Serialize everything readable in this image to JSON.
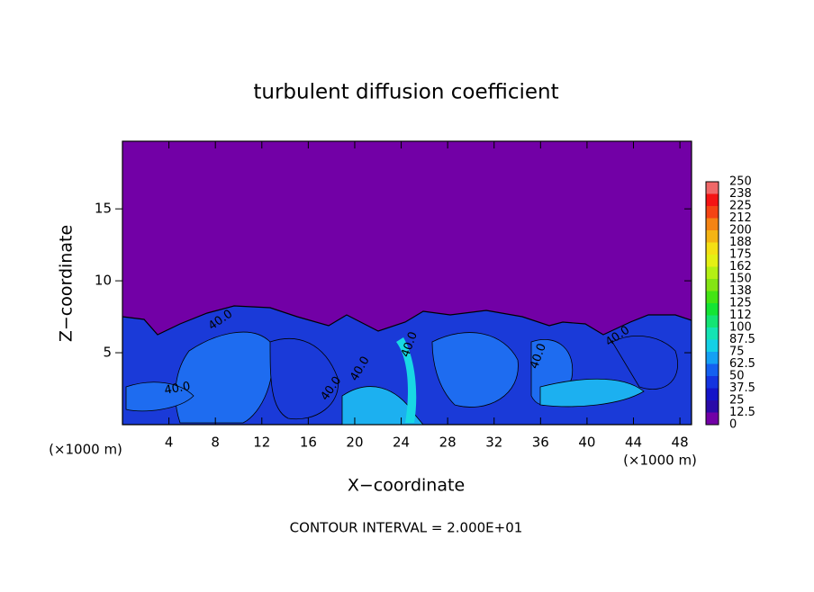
{
  "chart_data": {
    "type": "heatmap",
    "title": "turbulent diffusion coefficient",
    "xlabel": "X−coordinate",
    "ylabel": "Z−coordinate",
    "x_unit": "(×1000 m)",
    "y_unit": "(×1000 m)",
    "annotation": "CONTOUR INTERVAL = 2.000E+01",
    "xlim": [
      0,
      49
    ],
    "ylim": [
      0,
      19.7
    ],
    "xticks": [
      4,
      8,
      12,
      16,
      20,
      24,
      28,
      32,
      36,
      40,
      44,
      48
    ],
    "yticks": [
      5,
      10,
      15
    ],
    "colorbar": {
      "levels": [
        0,
        12.5,
        25,
        37.5,
        50,
        62.5,
        75,
        87.5,
        100,
        112,
        125,
        138,
        150,
        162,
        175,
        188,
        200,
        212,
        225,
        238,
        250
      ],
      "colors": [
        "#7200a6",
        "#2a0aa8",
        "#1414c8",
        "#1434e0",
        "#1460f0",
        "#14a0f4",
        "#14d0e6",
        "#14e4b4",
        "#14e474",
        "#14e434",
        "#44e414",
        "#84e414",
        "#b4f014",
        "#e4f014",
        "#f4e014",
        "#f4b414",
        "#f48414",
        "#f44414",
        "#f41414",
        "#f06868"
      ]
    },
    "contour_labels": [
      "40.0",
      "40.0",
      "40.0",
      "40.0",
      "40.0",
      "40.0",
      "40.0"
    ]
  }
}
